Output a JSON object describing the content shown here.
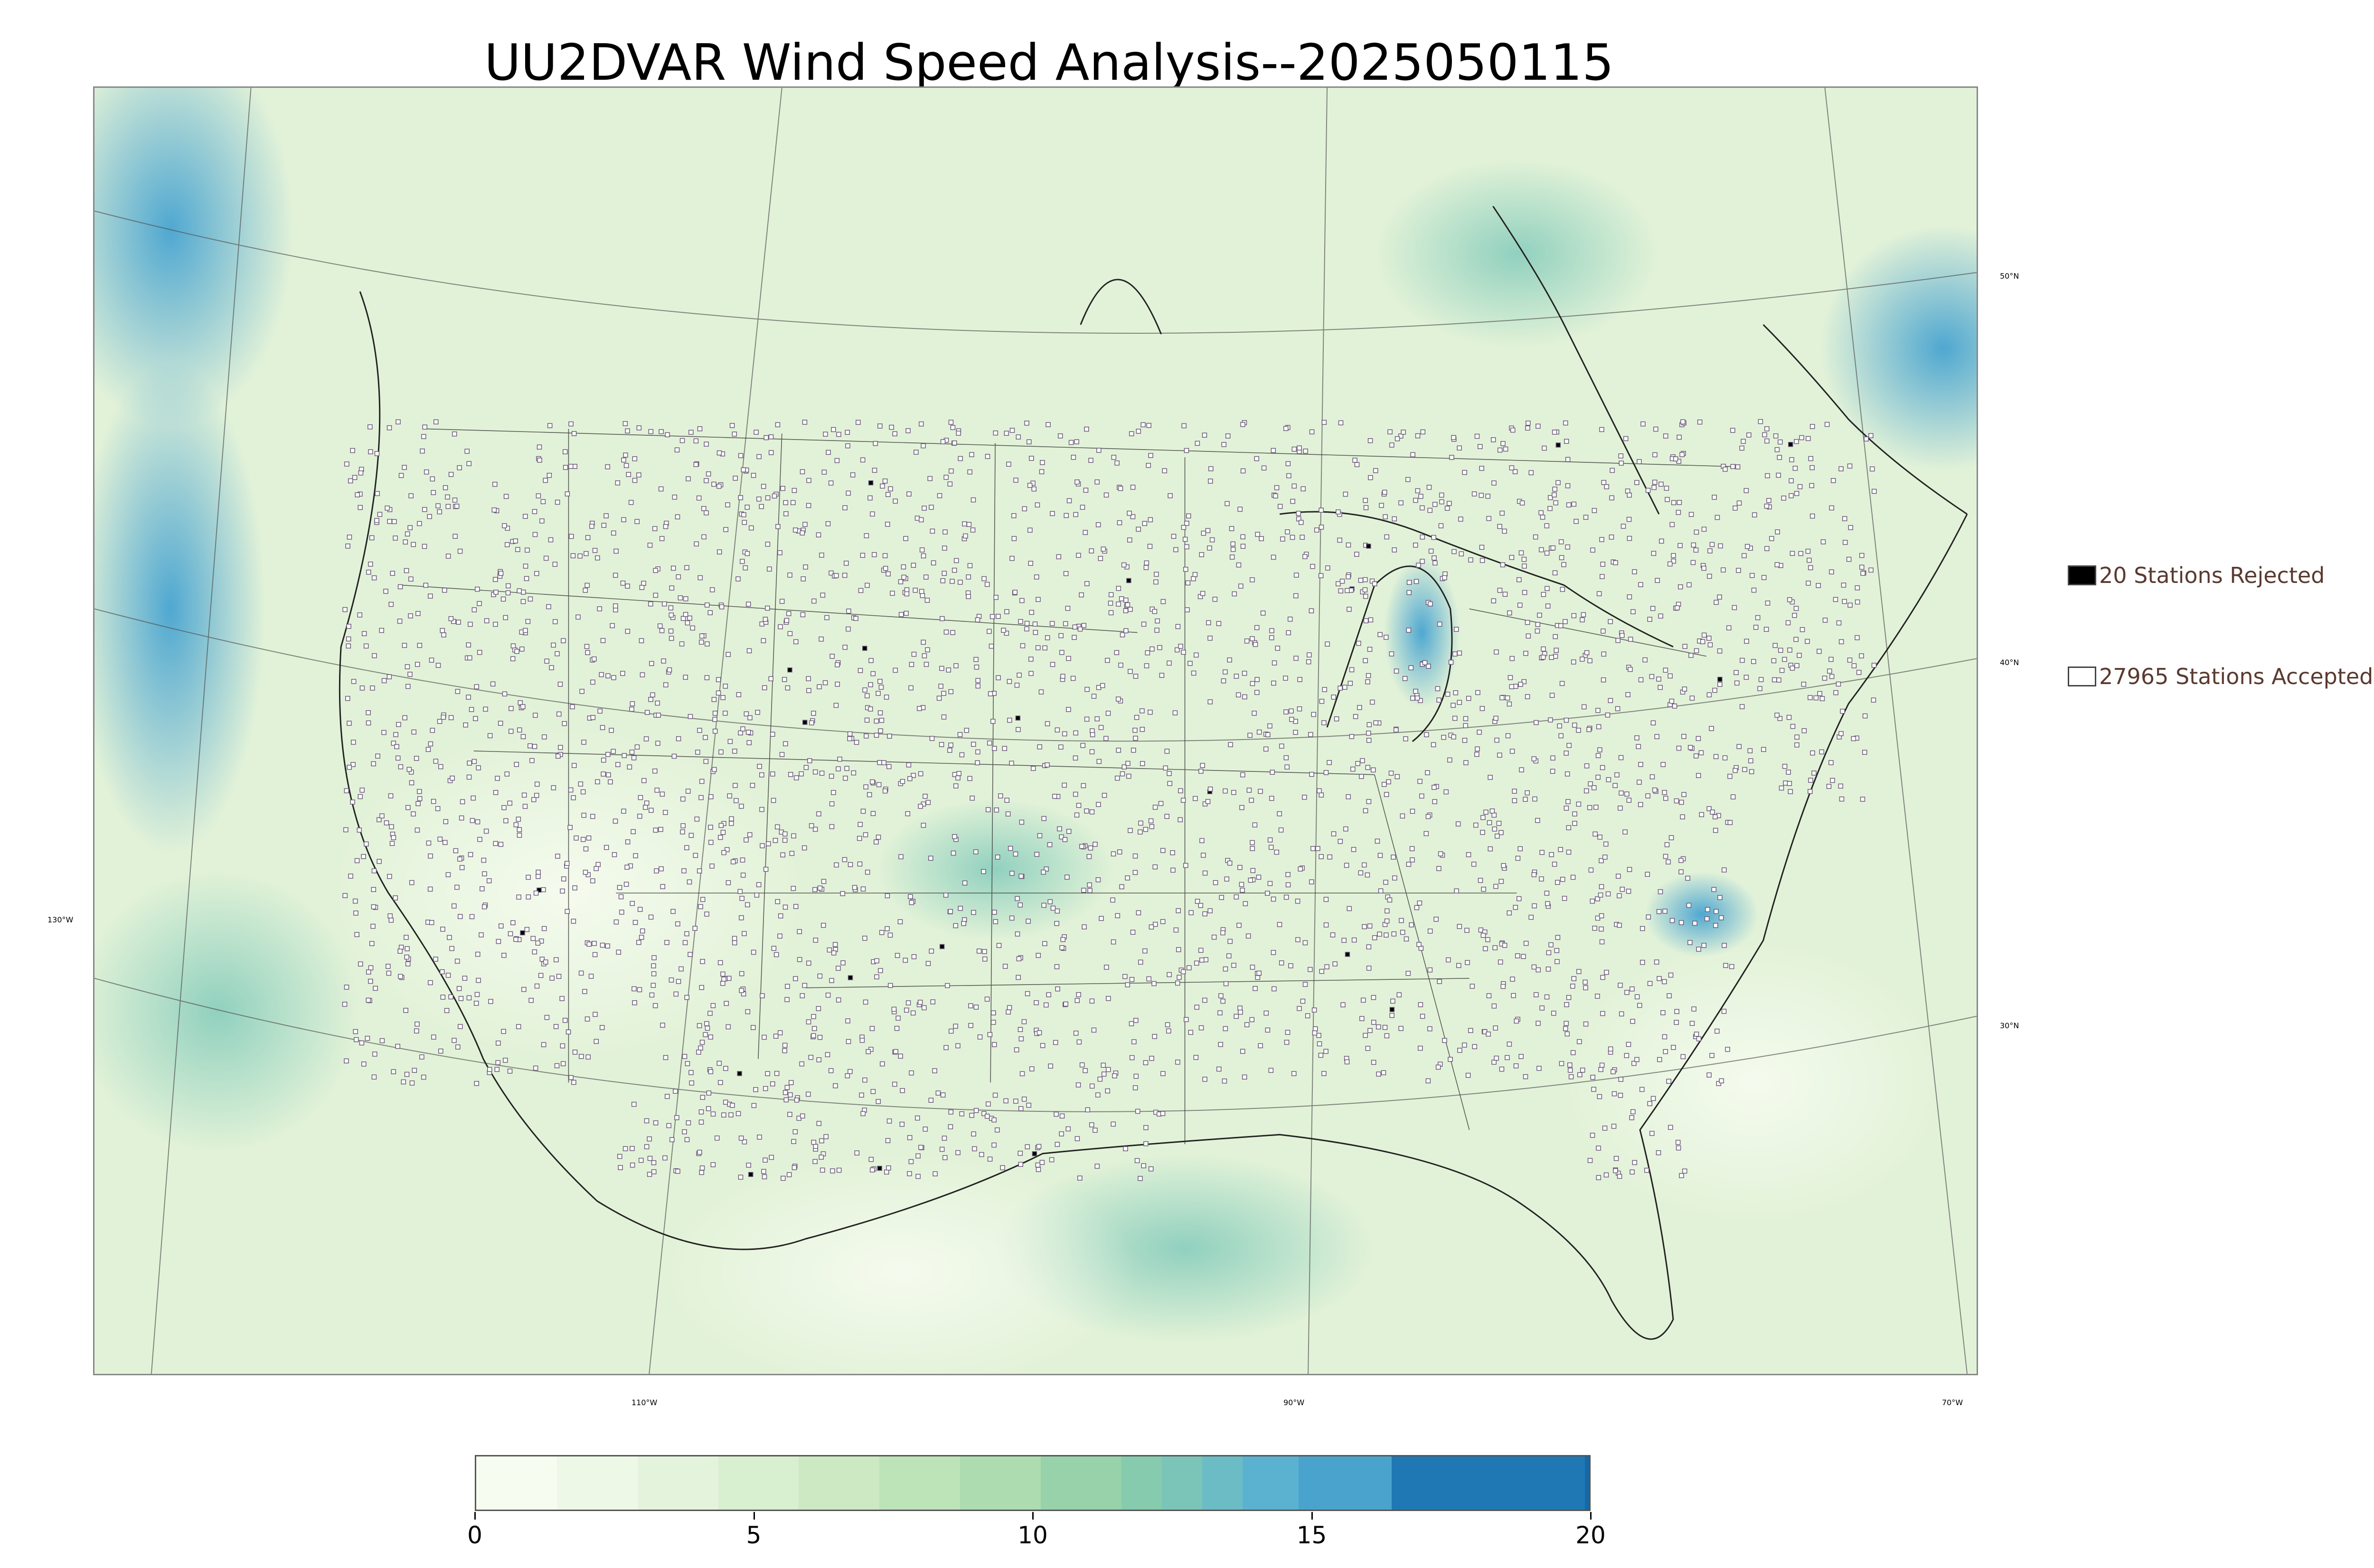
{
  "title": "UU2DVAR Wind Speed Analysis--2025050115",
  "map": {
    "lat_labels": [
      "50°N",
      "40°N",
      "30°N"
    ],
    "lon_labels_left": [
      "130°W"
    ],
    "lon_labels_bottom": [
      "110°W",
      "90°W",
      "70°W"
    ],
    "colors": {
      "land_base": "#e6f4dc",
      "ocean_calm": "#d8f0d0",
      "strong_wind": "#4aa8d4",
      "station_marker": "#6a5a78",
      "border": "#333333"
    }
  },
  "legend": {
    "rejected": {
      "label": "20 Stations Rejected",
      "color": "#000000"
    },
    "accepted": {
      "label": "27965 Stations Accepted",
      "color": "#ffffff"
    }
  },
  "colorbar": {
    "min": 0,
    "max": 20,
    "ticks": [
      "0",
      "5",
      "10",
      "15",
      "20"
    ],
    "colors": [
      "#f7fcf0",
      "#eef8e6",
      "#e4f4dc",
      "#d8efd0",
      "#cce9c4",
      "#bde3b8",
      "#acdcaf",
      "#97d2aa",
      "#86cbae",
      "#7bc5b8",
      "#6bbcc4",
      "#5ab2d0",
      "#4aa3cd",
      "#1f78b4",
      "#1668a6"
    ]
  }
}
